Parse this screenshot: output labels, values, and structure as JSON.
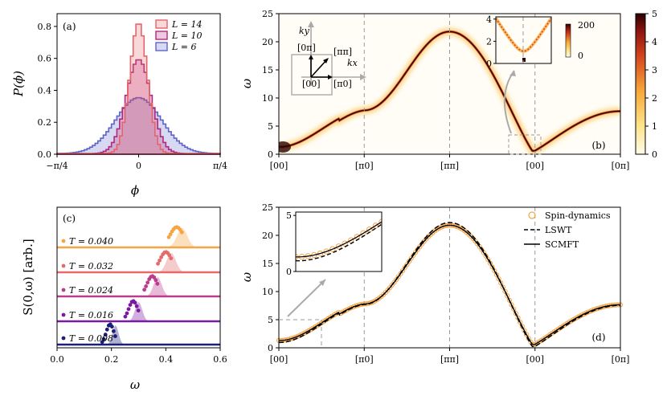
{
  "chart_data": [
    {
      "panel": "a",
      "type": "bar",
      "label": "(a)",
      "xlabel": "ϕ",
      "ylabel": "P(ϕ)",
      "xlim": [
        -0.785,
        0.785
      ],
      "ylim": [
        0,
        0.88
      ],
      "xticks": [
        "−π/4",
        "0",
        "π/4"
      ],
      "yticks": [
        "0.0",
        "0.2",
        "0.4",
        "0.6",
        "0.8"
      ],
      "series": [
        {
          "name": "L = 14",
          "sigma": 0.085,
          "peak": 0.82,
          "color": "#e8636a"
        },
        {
          "name": "L = 10",
          "sigma": 0.12,
          "peak": 0.59,
          "color": "#b3287a"
        },
        {
          "name": "L = 6",
          "sigma": 0.22,
          "peak": 0.35,
          "color": "#5e63c8"
        }
      ]
    },
    {
      "panel": "b",
      "type": "heatmap",
      "label": "(b)",
      "ylabel": "ω",
      "ylim": [
        0,
        25
      ],
      "xticks": [
        "[00]",
        "[π0]",
        "[ππ]",
        "[00]",
        "[0π]"
      ],
      "yticks": [
        "0",
        "5",
        "10",
        "15",
        "20",
        "25"
      ],
      "colorbar": {
        "min": 0,
        "max": 5,
        "ticks": [
          "0",
          "1",
          "2",
          "3",
          "4",
          "5"
        ]
      },
      "dispersion_key_points": [
        {
          "x": "[00]",
          "omega": 1.3
        },
        {
          "x": "[π0]",
          "omega": 7.8
        },
        {
          "x": "[ππ]",
          "omega": 21.8
        },
        {
          "x": "[00]",
          "omega": 0.6
        },
        {
          "x": "[0π]",
          "omega": 7.6
        }
      ],
      "inset": {
        "yticks": [
          "0",
          "2",
          "4"
        ],
        "colorbar_ticks": [
          "200",
          "0"
        ],
        "min_omega": 1.1
      },
      "bz_inset": {
        "kx": "kx",
        "ky": "ky",
        "points": [
          "[0π]",
          "[ππ]",
          "[00]",
          "[π0]"
        ]
      }
    },
    {
      "panel": "c",
      "type": "scatter",
      "label": "(c)",
      "xlabel": "ω",
      "ylabel": "S(0,ω)  [arb.]",
      "xlim": [
        0,
        0.6
      ],
      "xticks": [
        "0.0",
        "0.2",
        "0.4",
        "0.6"
      ],
      "series": [
        {
          "name": "T = 0.040",
          "center": 0.46,
          "color": "#f5a546"
        },
        {
          "name": "T = 0.032",
          "center": 0.42,
          "color": "#e66a6a"
        },
        {
          "name": "T = 0.024",
          "center": 0.37,
          "color": "#bb3b8d"
        },
        {
          "name": "T = 0.016",
          "center": 0.3,
          "color": "#7a1aa0"
        },
        {
          "name": "T = 0.008",
          "center": 0.215,
          "color": "#1c1f7a"
        }
      ]
    },
    {
      "panel": "d",
      "type": "line",
      "label": "(d)",
      "ylabel": "ω",
      "ylim": [
        0,
        25
      ],
      "xticks": [
        "[00]",
        "[π0]",
        "[ππ]",
        "[00]",
        "[0π]"
      ],
      "yticks": [
        "0",
        "5",
        "10",
        "15",
        "20",
        "25"
      ],
      "legend": [
        "Spin-dynamics",
        "LSWT",
        "SCMFT"
      ],
      "inset": {
        "yticks": [
          "0",
          "5"
        ]
      }
    }
  ]
}
